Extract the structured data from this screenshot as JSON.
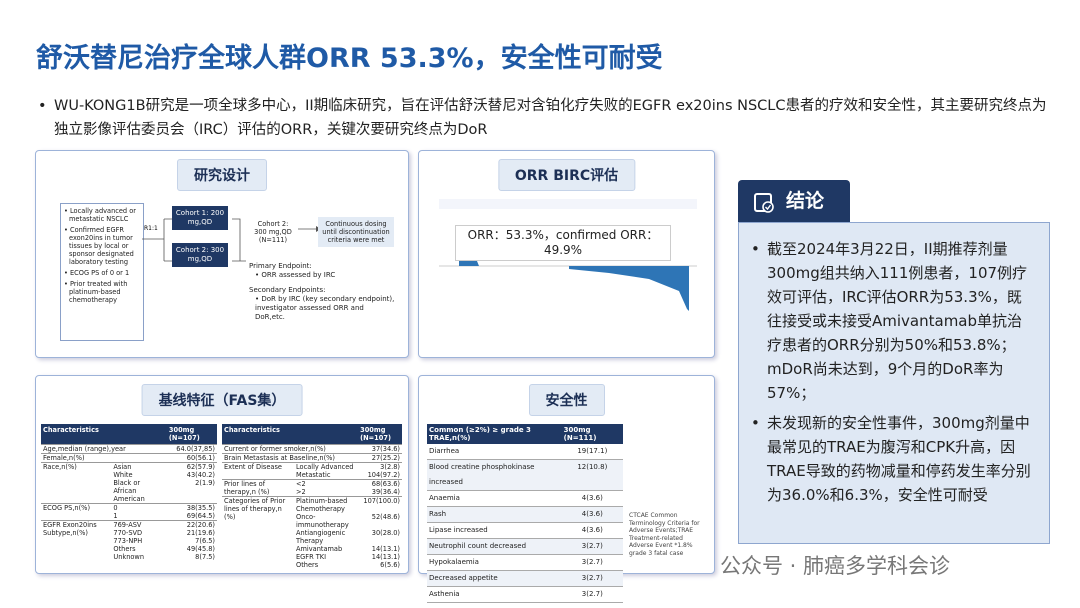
{
  "header": {
    "title": "舒沃替尼治疗全球人群ORR 53.3%，安全性可耐受"
  },
  "intro": "WU-KONG1B研究是一项全球多中心，II期临床研究，旨在评估舒沃替尼对含铂化疗失败的EGFR ex20ins NSCLC患者的疗效和安全性，其主要研究终点为独立影像评估委员会（IRC）评估的ORR，关键次要研究终点为DoR",
  "design": {
    "title": "研究设计",
    "criteria": [
      "Locally advanced or metastatic NSCLC",
      "Confirmed EGFR exon20ins in tumor tissues by local or sponsor designated laboratory testing",
      "ECOG PS of 0 or 1",
      "Prior treated with platinum-based chemotherapy"
    ],
    "randomize": "R1:1",
    "cohort1": "Cohort 1: 200 mg,QD",
    "cohort2": "Cohort 2: 300 mg,QD",
    "selected": "Cohort 2: 300 mg,QD (N=111)",
    "continuous": "Continuous dosing until discontinuation criteria were met",
    "primary_label": "Primary Endpoint:",
    "primary": "ORR assessed by IRC",
    "secondary_label": "Secondary Endpoints:",
    "secondary": "DoR by IRC (key secondary endpoint), investigator assessed ORR and DoR,etc."
  },
  "orr": {
    "title": "ORR BIRC评估",
    "annotation": "ORR：53.3%，confirmed ORR：49.9%"
  },
  "baseline": {
    "title": "基线特征（FAS集）",
    "left": {
      "headers": [
        "Characteristics",
        "300mg (N=107)"
      ],
      "groups": [
        {
          "label": "Age,median (range),year",
          "rows": [
            {
              "value": "64.0(37,85)"
            }
          ]
        },
        {
          "label": "Female,n(%)",
          "rows": [
            {
              "value": "60(56.1)"
            }
          ]
        },
        {
          "label": "Race,n(%)",
          "rows": [
            {
              "sub": "Asian",
              "value": "62(57.9)"
            },
            {
              "sub": "White",
              "value": "43(40.2)"
            },
            {
              "sub": "Black or African American",
              "value": "2(1.9)"
            }
          ]
        },
        {
          "label": "ECOG PS,n(%)",
          "rows": [
            {
              "sub": "0",
              "value": "38(35.5)"
            },
            {
              "sub": "1",
              "value": "69(64.5)"
            }
          ]
        },
        {
          "label": "EGFR Exon20ins Subtype,n(%)",
          "rows": [
            {
              "sub": "769-ASV",
              "value": "22(20.6)"
            },
            {
              "sub": "770-SVD",
              "value": "21(19.6)"
            },
            {
              "sub": "773-NPH",
              "value": "7(6.5)"
            },
            {
              "sub": "Others",
              "value": "49(45.8)"
            },
            {
              "sub": "Unknown",
              "value": "8(7.5)"
            }
          ]
        }
      ]
    },
    "right": {
      "headers": [
        "Characteristics",
        "300mg (N=107)"
      ],
      "groups": [
        {
          "label": "Current or former smoker,n(%)",
          "rows": [
            {
              "value": "37(34.6)"
            }
          ]
        },
        {
          "label": "Brain Metastasis at Baseline,n(%)",
          "rows": [
            {
              "value": "27(25.2)"
            }
          ]
        },
        {
          "label": "Extent of Disease",
          "rows": [
            {
              "sub": "Locally Advanced",
              "value": "3(2.8)"
            },
            {
              "sub": "Metastatic",
              "value": "104(97.2)"
            }
          ]
        },
        {
          "label": "Prior lines of therapy,n (%)",
          "rows": [
            {
              "sub": "<2",
              "value": "68(63.6)"
            },
            {
              "sub": ">2",
              "value": "39(36.4)"
            }
          ]
        },
        {
          "label": "Categories of Prior lines of therapy,n (%)",
          "rows": [
            {
              "sub": "Platinum-based Chemotherapy",
              "value": "107(100.0)"
            },
            {
              "sub": "Onco-immunotherapy",
              "value": "52(48.6)"
            },
            {
              "sub": "Antiangiogenic Therapy",
              "value": "30(28.0)"
            },
            {
              "sub": "Amivantamab",
              "value": "14(13.1)"
            },
            {
              "sub": "EGFR TKI",
              "value": "14(13.1)"
            },
            {
              "sub": "Others",
              "value": "6(5.6)"
            }
          ]
        }
      ]
    }
  },
  "safety": {
    "title": "安全性",
    "headers": [
      "Common (≥2%) ≥ grade 3 TRAE,n(%)",
      "300mg (N=111)"
    ],
    "rows": [
      [
        "Diarrhea",
        "19(17.1)"
      ],
      [
        "Blood creatine phosphokinase increased",
        "12(10.8)"
      ],
      [
        "Anaemia",
        "4(3.6)"
      ],
      [
        "Rash",
        "4(3.6)"
      ],
      [
        "Lipase increased",
        "4(3.6)"
      ],
      [
        "Neutrophil count decreased",
        "3(2.7)"
      ],
      [
        "Hypokalaemia",
        "3(2.7)"
      ],
      [
        "Decreased appetite",
        "3(2.7)"
      ],
      [
        "Asthenia",
        "3(2.7)"
      ]
    ],
    "note": "CTCAE Common Terminology Criteria for Adverse Events;TRAE Treatment-related Adverse Event *1.8% grade 3 fatal case"
  },
  "conclusion": {
    "title": "结论",
    "bullets": [
      "截至2024年3月22日，II期推荐剂量300mg组共纳入111例患者，107例疗效可评估，IRC评估ORR为53.3%，既往接受或未接受Amivantamab单抗治疗患者的ORR分别为50%和53.8%； mDoR尚未达到，9个月的DoR率为57%；",
      "未发现新的安全性事件，300mg剂量中最常见的TRAE为腹泻和CPK升高，因TRAE导致的药物减量和停药发生率分别为36.0%和6.3%，安全性可耐受"
    ]
  },
  "watermark": "公众号 · 肺癌多学科会诊"
}
